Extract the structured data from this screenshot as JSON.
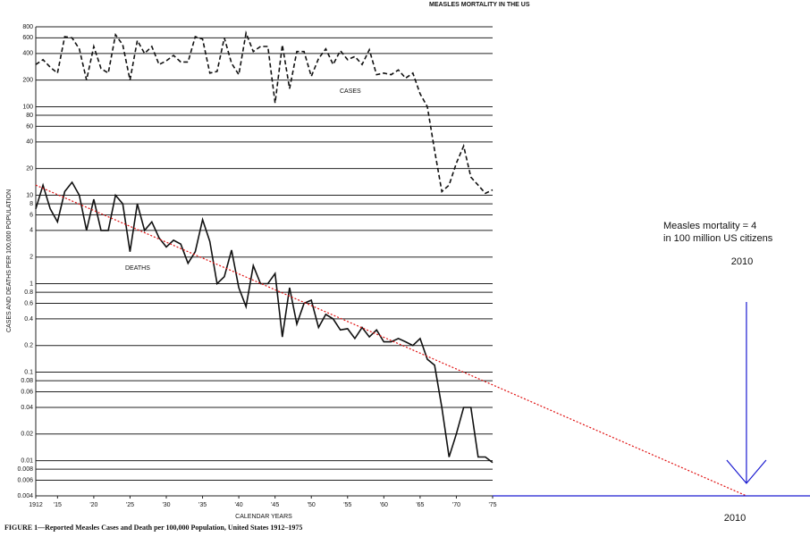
{
  "chart_data": {
    "type": "line",
    "title": "MEASLES MORTALITY IN THE US",
    "y_label": "CASES AND DEATHS PER 100,000 POPULATION",
    "x_label": "CALENDAR YEARS",
    "caption": "FIGURE 1—Reported Measles Cases and Death per 100,000 Population, United States 1912–1975",
    "log_y": true,
    "grid": true,
    "x": [
      1912,
      1913,
      1914,
      1915,
      1916,
      1917,
      1918,
      1919,
      1920,
      1921,
      1922,
      1923,
      1924,
      1925,
      1926,
      1927,
      1928,
      1929,
      1930,
      1931,
      1932,
      1933,
      1934,
      1935,
      1936,
      1937,
      1938,
      1939,
      1940,
      1941,
      1942,
      1943,
      1944,
      1945,
      1946,
      1947,
      1948,
      1949,
      1950,
      1951,
      1952,
      1953,
      1954,
      1955,
      1956,
      1957,
      1958,
      1959,
      1960,
      1961,
      1962,
      1963,
      1964,
      1965,
      1966,
      1967,
      1968,
      1969,
      1970,
      1971,
      1972,
      1973,
      1974,
      1975
    ],
    "series": [
      {
        "name": "CASES",
        "color": "#111111",
        "dashed": true,
        "values": [
          300,
          340,
          280,
          240,
          620,
          600,
          450,
          200,
          480,
          270,
          240,
          650,
          500,
          200,
          560,
          400,
          480,
          300,
          330,
          380,
          320,
          320,
          620,
          580,
          240,
          250,
          600,
          310,
          230,
          680,
          420,
          480,
          480,
          110,
          500,
          160,
          420,
          420,
          220,
          350,
          450,
          300,
          430,
          340,
          370,
          300,
          440,
          230,
          240,
          230,
          260,
          210,
          240,
          140,
          100,
          32,
          11,
          13,
          23,
          36,
          16,
          13,
          10.5,
          11.5
        ]
      },
      {
        "name": "DEATHS",
        "color": "#111111",
        "dashed": false,
        "values": [
          7,
          13,
          7,
          5,
          11,
          14,
          10,
          4,
          9,
          4,
          4,
          10,
          8,
          2.3,
          8,
          4,
          5,
          3.3,
          2.6,
          3.1,
          2.8,
          1.7,
          2.3,
          5.3,
          3,
          1,
          1.2,
          2.4,
          0.9,
          0.55,
          1.6,
          1,
          1,
          1.3,
          0.25,
          0.9,
          0.35,
          0.6,
          0.65,
          0.32,
          0.45,
          0.4,
          0.3,
          0.31,
          0.24,
          0.32,
          0.25,
          0.3,
          0.22,
          0.22,
          0.24,
          0.22,
          0.2,
          0.24,
          0.14,
          0.12,
          0.04,
          0.011,
          0.02,
          0.04,
          0.04,
          0.011,
          0.011,
          0.0095
        ]
      }
    ],
    "trend": {
      "color": "#e01010",
      "x": [
        1912,
        2010
      ],
      "values": [
        13,
        0.004
      ]
    },
    "reference": {
      "color": "#1a1ad0",
      "value": 0.004
    },
    "annotation": "Measles mortality = 4 in 100 million US citizens",
    "annotation_year": "2010",
    "axis_year": "2010",
    "xlim": [
      1912,
      1975
    ],
    "xticks": [
      1912,
      {
        "value": 1915,
        "label": "'15"
      },
      {
        "value": 1920,
        "label": "'20"
      },
      {
        "value": 1925,
        "label": "'25"
      },
      {
        "value": 1930,
        "label": "'30"
      },
      {
        "value": 1935,
        "label": "'35"
      },
      {
        "value": 1940,
        "label": "'40"
      },
      {
        "value": 1945,
        "label": "'45"
      },
      {
        "value": 1950,
        "label": "'50"
      },
      {
        "value": 1955,
        "label": "'55"
      },
      {
        "value": 1960,
        "label": "'60"
      },
      {
        "value": 1965,
        "label": "'65"
      },
      {
        "value": 1970,
        "label": "'70"
      },
      {
        "value": 1975,
        "label": "'75"
      }
    ],
    "ylim": [
      0.004,
      800
    ],
    "yticks": [
      0.004,
      0.006,
      0.008,
      0.01,
      0.02,
      0.04,
      0.06,
      0.08,
      0.1,
      0.2,
      0.4,
      0.6,
      0.8,
      1,
      2,
      4,
      6,
      8,
      10,
      20,
      40,
      60,
      80,
      100,
      200,
      400,
      600,
      800
    ]
  }
}
